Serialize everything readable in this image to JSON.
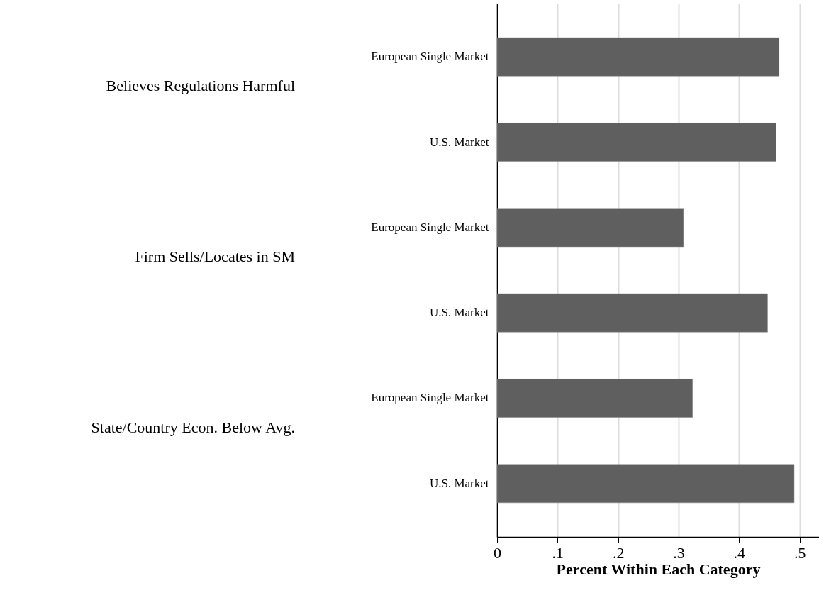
{
  "chart_data": {
    "type": "bar",
    "orientation": "horizontal",
    "xlabel": "Percent Within Each Category",
    "categories": [
      "European Single Market",
      "U.S. Market",
      "European Single Market",
      "U.S. Market",
      "European Single Market",
      "U.S. Market"
    ],
    "values": [
      0.466,
      0.461,
      0.308,
      0.447,
      0.323,
      0.491
    ],
    "color": "#5f5f5f",
    "xlim": [
      0,
      0.532
    ],
    "xticks": [
      0,
      {
        "value": 0.1,
        "label": ".1"
      },
      {
        "value": 0.2,
        "label": ".2"
      },
      {
        "value": 0.3,
        "label": ".3"
      },
      {
        "value": 0.4,
        "label": ".4"
      },
      {
        "value": 0.5,
        "label": ".5"
      }
    ],
    "grid": "x",
    "annotations": [
      "Believes Regulations Harmful",
      "Firm Sells/Locates in SM",
      "State/Country Econ. Below Avg."
    ]
  }
}
